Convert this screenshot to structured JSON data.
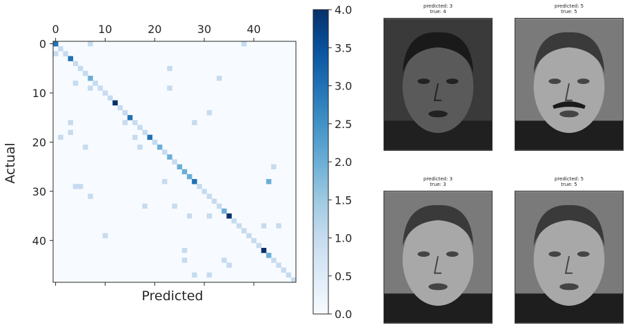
{
  "chart_data": [
    {
      "type": "heatmap",
      "title": "",
      "xlabel": "Predicted",
      "ylabel": "Actual",
      "colormap": "Blues",
      "size": 49,
      "x_ticks": [
        0,
        10,
        20,
        30,
        40
      ],
      "y_ticks": [
        0,
        10,
        20,
        30,
        40
      ],
      "colorbar": {
        "range": [
          0.0,
          4.0
        ],
        "ticks": [
          "0.0",
          "0.5",
          "1.0",
          "1.5",
          "2.0",
          "2.5",
          "3.0",
          "3.5",
          "4.0"
        ]
      },
      "diagonal": [
        3,
        1,
        1,
        3,
        1,
        1,
        1,
        2,
        1,
        1,
        1,
        1,
        4,
        1,
        1,
        3,
        1,
        1,
        1,
        3,
        1,
        2,
        1,
        2,
        1,
        2,
        2,
        2,
        3,
        1,
        1,
        1,
        1,
        1,
        2,
        4,
        1,
        1,
        1,
        1,
        1,
        1,
        4,
        2,
        1,
        1,
        1,
        1,
        1
      ],
      "off_diagonal": [
        {
          "row": 0,
          "col": 38,
          "value": 1
        },
        {
          "row": 0,
          "col": 7,
          "value": 1
        },
        {
          "row": 2,
          "col": 0,
          "value": 1
        },
        {
          "row": 5,
          "col": 23,
          "value": 1
        },
        {
          "row": 7,
          "col": 33,
          "value": 1
        },
        {
          "row": 8,
          "col": 4,
          "value": 1
        },
        {
          "row": 9,
          "col": 7,
          "value": 1
        },
        {
          "row": 9,
          "col": 23,
          "value": 1
        },
        {
          "row": 14,
          "col": 31,
          "value": 1
        },
        {
          "row": 16,
          "col": 3,
          "value": 1
        },
        {
          "row": 16,
          "col": 14,
          "value": 1
        },
        {
          "row": 16,
          "col": 28,
          "value": 1
        },
        {
          "row": 18,
          "col": 3,
          "value": 1
        },
        {
          "row": 19,
          "col": 1,
          "value": 1
        },
        {
          "row": 19,
          "col": 16,
          "value": 1
        },
        {
          "row": 21,
          "col": 17,
          "value": 1
        },
        {
          "row": 21,
          "col": 6,
          "value": 1
        },
        {
          "row": 25,
          "col": 44,
          "value": 1
        },
        {
          "row": 28,
          "col": 22,
          "value": 1
        },
        {
          "row": 28,
          "col": 43,
          "value": 2
        },
        {
          "row": 29,
          "col": 4,
          "value": 1
        },
        {
          "row": 29,
          "col": 5,
          "value": 1
        },
        {
          "row": 31,
          "col": 7,
          "value": 1
        },
        {
          "row": 33,
          "col": 18,
          "value": 1
        },
        {
          "row": 33,
          "col": 24,
          "value": 1
        },
        {
          "row": 35,
          "col": 27,
          "value": 1
        },
        {
          "row": 35,
          "col": 31,
          "value": 1
        },
        {
          "row": 37,
          "col": 42,
          "value": 1
        },
        {
          "row": 37,
          "col": 45,
          "value": 1
        },
        {
          "row": 38,
          "col": 38,
          "value": 1
        },
        {
          "row": 39,
          "col": 10,
          "value": 1
        },
        {
          "row": 42,
          "col": 26,
          "value": 1
        },
        {
          "row": 44,
          "col": 26,
          "value": 1
        },
        {
          "row": 44,
          "col": 34,
          "value": 1
        },
        {
          "row": 45,
          "col": 35,
          "value": 1
        },
        {
          "row": 47,
          "col": 28,
          "value": 1
        },
        {
          "row": 47,
          "col": 31,
          "value": 1
        }
      ]
    }
  ],
  "faces": [
    {
      "predicted_label": "predicted: 3",
      "true_label": "true: 4",
      "tone": "dark"
    },
    {
      "predicted_label": "predicted: 5",
      "true_label": "true: 5",
      "tone": "light-mustache"
    },
    {
      "predicted_label": "predicted: 3",
      "true_label": "true: 3",
      "tone": "light"
    },
    {
      "predicted_label": "predicted: 5",
      "true_label": "true: 5",
      "tone": "light"
    }
  ]
}
